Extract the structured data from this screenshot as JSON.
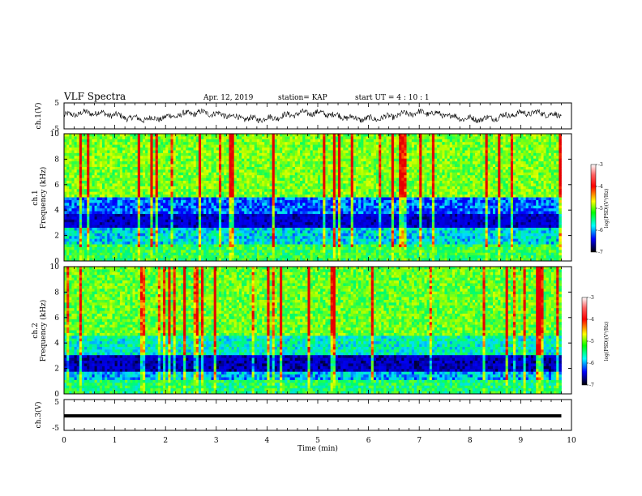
{
  "header": {
    "title": "VLF Spectra",
    "date": "Apr. 12, 2019",
    "station": "station= KAP",
    "start_ut": "start  UT =  4 : 10 : 1"
  },
  "chart_data": [
    {
      "panel": "ch1-waveform",
      "type": "line",
      "ylabel": "ch.1(V)",
      "ylim": [
        -5,
        5
      ],
      "y_ticks": [
        "5",
        "-5"
      ],
      "xlim": [
        0,
        10
      ],
      "description_series": "noisy waveform oscillating roughly between -3 and +3 V over 0–9.8 min"
    },
    {
      "panel": "ch1-spectrogram",
      "type": "heatmap",
      "ylabel_line1": "ch.1",
      "ylabel_line2": "Frequency (kHz)",
      "ylim": [
        0,
        10
      ],
      "y_ticks": [
        "0",
        "2",
        "4",
        "6",
        "8",
        "10"
      ],
      "xlim": [
        0,
        10
      ],
      "data_extent_x": 9.8,
      "colorbar": {
        "label": "log(PSD)(V²/Hz)",
        "range": [
          -7,
          -3
        ],
        "ticks": [
          "-3",
          "-4",
          "-5",
          "-6",
          "-7"
        ],
        "colors": [
          "#ffffff",
          "#ff0000",
          "#ffff00",
          "#00ff00",
          "#00ffff",
          "#0000ff",
          "#000000"
        ]
      }
    },
    {
      "panel": "ch2-spectrogram",
      "type": "heatmap",
      "ylabel_line1": "ch.2",
      "ylabel_line2": "Frequency (kHz)",
      "ylim": [
        0,
        10
      ],
      "y_ticks": [
        "0",
        "2",
        "4",
        "6",
        "8",
        "10"
      ],
      "xlim": [
        0,
        10
      ],
      "data_extent_x": 9.8,
      "colorbar": {
        "label": "log(PSD)(V²/Hz)",
        "range": [
          -7,
          -3
        ],
        "ticks": [
          "-3",
          "-4",
          "-5",
          "-6",
          "-7"
        ],
        "colors": [
          "#ffffff",
          "#ff0000",
          "#ffff00",
          "#00ff00",
          "#00ffff",
          "#0000ff",
          "#000000"
        ]
      }
    },
    {
      "panel": "ch3-waveform",
      "type": "line",
      "ylabel": "ch.3(V)",
      "ylim": [
        -5,
        5
      ],
      "y_ticks": [
        "5",
        "-5"
      ],
      "xlim": [
        0,
        10
      ],
      "series": [
        {
          "x": [
            0,
            9.8
          ],
          "y": [
            -0.3,
            -0.3
          ]
        }
      ]
    }
  ],
  "x_axis": {
    "label": "Time  (min)",
    "ticks": [
      "0",
      "1",
      "2",
      "3",
      "4",
      "5",
      "6",
      "7",
      "8",
      "9",
      "10"
    ]
  }
}
